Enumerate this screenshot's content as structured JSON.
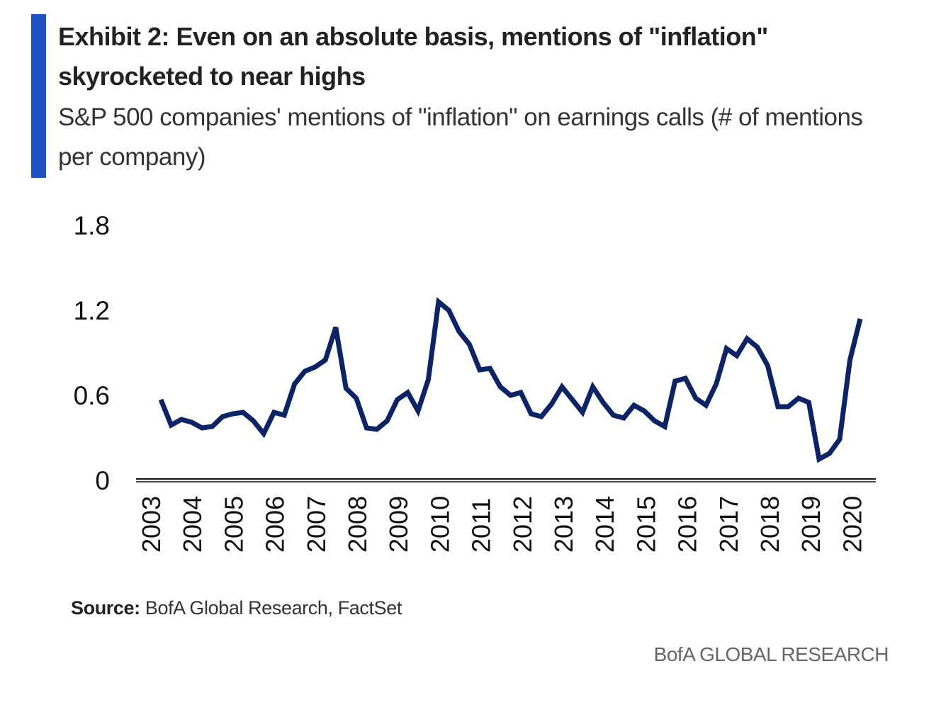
{
  "header": {
    "title": "Exhibit 2: Even on an absolute basis, mentions of \"inflation\" skyrocketed to near highs",
    "subtitle": "S&P 500 companies' mentions of \"inflation\" on earnings calls (# of mentions per company)"
  },
  "source": {
    "label": "Source:",
    "text": "BofA Global Research, FactSet"
  },
  "footer": {
    "brand": "BofA GLOBAL RESEARCH"
  },
  "colors": {
    "accent": "#1f4fc4",
    "line": "#0c2366",
    "axis": "#111111"
  },
  "chart_data": {
    "type": "line",
    "title": "",
    "xlabel": "",
    "ylabel": "",
    "ylim": [
      0,
      1.8
    ],
    "yticks": [
      "0",
      "0.6",
      "1.2",
      "1.8"
    ],
    "ytick_values": [
      0,
      0.6,
      1.2,
      1.8
    ],
    "xticks": [
      "2003",
      "2004",
      "2005",
      "2006",
      "2007",
      "2008",
      "2009",
      "2010",
      "2011",
      "2012",
      "2013",
      "2014",
      "2015",
      "2016",
      "2017",
      "2018",
      "2019",
      "2020"
    ],
    "grid": false,
    "legend": "none",
    "series": [
      {
        "values": [
          0.57,
          0.39,
          0.43,
          0.41,
          0.37,
          0.38,
          0.45,
          0.47,
          0.48,
          0.42,
          0.33,
          0.48,
          0.46,
          0.68,
          0.77,
          0.8,
          0.85,
          1.08,
          0.65,
          0.58,
          0.37,
          0.36,
          0.42,
          0.57,
          0.62,
          0.49,
          0.71,
          1.26,
          1.2,
          1.05,
          0.96,
          0.78,
          0.79,
          0.66,
          0.6,
          0.62,
          0.47,
          0.45,
          0.54,
          0.66,
          0.57,
          0.48,
          0.66,
          0.55,
          0.46,
          0.44,
          0.53,
          0.49,
          0.42,
          0.38,
          0.7,
          0.72,
          0.58,
          0.53,
          0.68,
          0.93,
          0.88,
          1.0,
          0.94,
          0.81,
          0.52,
          0.52,
          0.58,
          0.55,
          0.15,
          0.19,
          0.29,
          0.85,
          1.14
        ]
      }
    ]
  }
}
